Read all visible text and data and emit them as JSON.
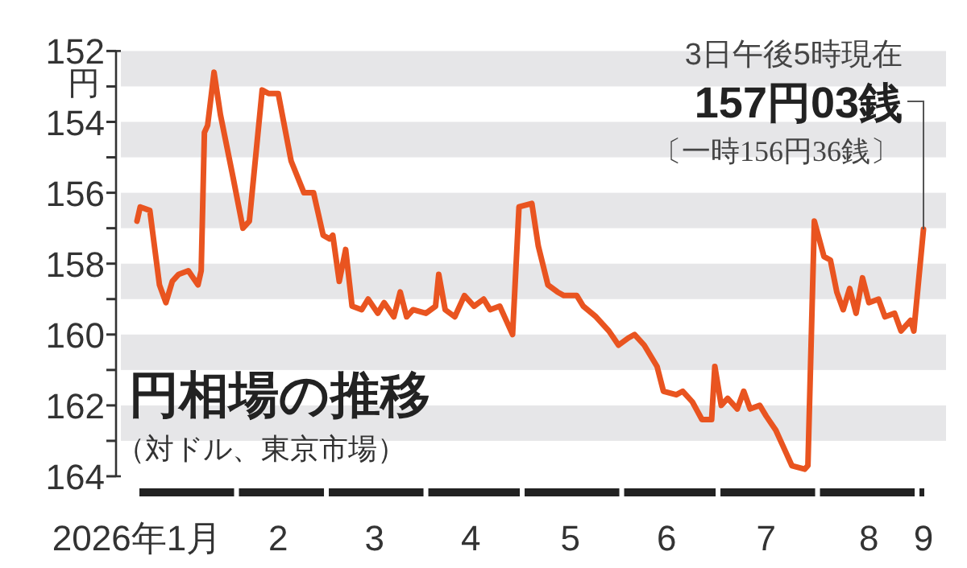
{
  "chart_data": {
    "type": "line",
    "title": "円相場の推移",
    "subtitle": "（対ドル、東京市場）",
    "ylabel": "円",
    "annotations": [
      "3日午後5時現在",
      {
        "text": "157円03銭",
        "x": "2026-09-03",
        "y": 157.03
      },
      "〔一時156円36銭〕"
    ],
    "x": [
      "2026-01-01",
      "2026-01-02",
      "2026-01-05",
      "2026-01-08",
      "2026-01-10",
      "2026-01-12",
      "2026-01-14",
      "2026-01-17",
      "2026-01-20",
      "2026-01-21",
      "2026-01-22",
      "2026-01-23",
      "2026-01-25",
      "2026-01-27",
      "2026-01-31",
      "2026-02-03",
      "2026-02-05",
      "2026-02-09",
      "2026-02-11",
      "2026-02-14",
      "2026-02-18",
      "2026-02-22",
      "2026-02-25",
      "2026-02-28",
      "2026-03-02",
      "2026-03-03",
      "2026-03-05",
      "2026-03-07",
      "2026-03-09",
      "2026-03-12",
      "2026-03-14",
      "2026-03-17",
      "2026-03-19",
      "2026-03-22",
      "2026-03-24",
      "2026-03-26",
      "2026-03-28",
      "2026-04-01",
      "2026-04-04",
      "2026-04-05",
      "2026-04-07",
      "2026-04-10",
      "2026-04-13",
      "2026-04-16",
      "2026-04-19",
      "2026-04-21",
      "2026-04-24",
      "2026-04-26",
      "2026-04-28",
      "2026-04-30",
      "2026-05-04",
      "2026-05-06",
      "2026-05-09",
      "2026-05-12",
      "2026-05-14",
      "2026-05-18",
      "2026-05-20",
      "2026-05-24",
      "2026-05-28",
      "2026-05-31",
      "2026-06-03",
      "2026-06-05",
      "2026-06-08",
      "2026-06-12",
      "2026-06-14",
      "2026-06-18",
      "2026-06-20",
      "2026-06-23",
      "2026-06-26",
      "2026-06-29",
      "2026-06-30",
      "2026-07-02",
      "2026-07-04",
      "2026-07-07",
      "2026-07-09",
      "2026-07-11",
      "2026-07-14",
      "2026-07-16",
      "2026-07-19",
      "2026-07-22",
      "2026-07-24",
      "2026-07-28",
      "2026-07-29",
      "2026-07-31",
      "2026-08-03",
      "2026-08-05",
      "2026-08-07",
      "2026-08-09",
      "2026-08-11",
      "2026-08-13",
      "2026-08-15",
      "2026-08-17",
      "2026-08-20",
      "2026-08-22",
      "2026-08-25",
      "2026-08-27",
      "2026-08-30",
      "2026-08-31",
      "2026-09-03"
    ],
    "series": [
      {
        "color": "#e95420",
        "values": [
          156.8,
          156.4,
          156.5,
          158.6,
          159.1,
          158.5,
          158.3,
          158.2,
          158.6,
          158.2,
          154.3,
          154.1,
          152.6,
          153.8,
          155.6,
          157.0,
          156.8,
          153.1,
          153.2,
          153.2,
          155.1,
          156.0,
          156.0,
          157.2,
          157.3,
          157.2,
          158.5,
          157.6,
          159.2,
          159.3,
          159.0,
          159.4,
          159.1,
          159.5,
          158.8,
          159.5,
          159.3,
          159.4,
          159.2,
          158.3,
          159.3,
          159.5,
          158.9,
          159.2,
          159.0,
          159.3,
          159.2,
          159.6,
          160.0,
          156.4,
          156.3,
          157.5,
          158.6,
          158.8,
          158.9,
          158.9,
          159.2,
          159.5,
          159.9,
          160.3,
          160.1,
          160.0,
          160.3,
          160.9,
          161.6,
          161.7,
          161.6,
          161.9,
          162.4,
          162.4,
          160.9,
          162.0,
          161.8,
          162.1,
          161.6,
          162.1,
          162.0,
          162.3,
          162.7,
          163.3,
          163.7,
          163.8,
          163.7,
          156.8,
          157.8,
          157.9,
          158.8,
          159.3,
          158.7,
          159.4,
          158.4,
          159.1,
          159.0,
          159.5,
          159.4,
          159.9,
          159.6,
          159.9,
          157.03
        ]
      }
    ],
    "xlim": [
      "2026-01-01",
      "2026-09-03"
    ],
    "xticks": [
      {
        "value": "2026-01-01",
        "label": "2026年1月"
      },
      {
        "value": "2026-02-14",
        "label": "2"
      },
      {
        "value": "2026-03-16",
        "label": "3"
      },
      {
        "value": "2026-04-15",
        "label": "4"
      },
      {
        "value": "2026-05-16",
        "label": "5"
      },
      {
        "value": "2026-06-15",
        "label": "6"
      },
      {
        "value": "2026-07-16",
        "label": "7"
      },
      {
        "value": "2026-08-17",
        "label": "8"
      },
      {
        "value": "2026-09-03",
        "label": "9"
      }
    ],
    "ylim": [
      164,
      152
    ],
    "yticks": [
      152,
      154,
      156,
      158,
      160,
      162,
      164
    ],
    "bands": [
      {
        "axis": "y",
        "from": 152,
        "to": 153,
        "color": "#e6e6e8"
      },
      {
        "axis": "y",
        "from": 154,
        "to": 155,
        "color": "#e6e6e8"
      },
      {
        "axis": "y",
        "from": 156,
        "to": 157,
        "color": "#e6e6e8"
      },
      {
        "axis": "y",
        "from": 158,
        "to": 159,
        "color": "#e6e6e8"
      },
      {
        "axis": "y",
        "from": 160,
        "to": 161,
        "color": "#e6e6e8"
      },
      {
        "axis": "y",
        "from": 162,
        "to": 163,
        "color": "#e6e6e8"
      }
    ],
    "grid": false,
    "marker": "none",
    "line_style": "solid"
  }
}
